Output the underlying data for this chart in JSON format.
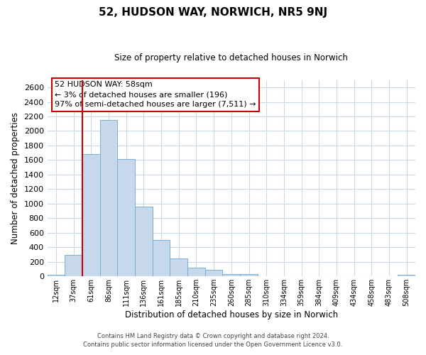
{
  "title": "52, HUDSON WAY, NORWICH, NR5 9NJ",
  "subtitle": "Size of property relative to detached houses in Norwich",
  "xlabel": "Distribution of detached houses by size in Norwich",
  "ylabel": "Number of detached properties",
  "bin_labels": [
    "12sqm",
    "37sqm",
    "61sqm",
    "86sqm",
    "111sqm",
    "136sqm",
    "161sqm",
    "185sqm",
    "210sqm",
    "235sqm",
    "260sqm",
    "285sqm",
    "310sqm",
    "334sqm",
    "359sqm",
    "384sqm",
    "409sqm",
    "434sqm",
    "458sqm",
    "483sqm",
    "508sqm"
  ],
  "bar_values": [
    20,
    300,
    1680,
    2150,
    1610,
    960,
    505,
    245,
    120,
    95,
    30,
    30,
    5,
    5,
    5,
    5,
    5,
    5,
    5,
    5,
    20
  ],
  "bar_color": "#c8d8ec",
  "bar_edge_color": "#7aafd4",
  "property_line_x": 2,
  "property_line_color": "#cc0000",
  "ylim": [
    0,
    2700
  ],
  "yticks": [
    0,
    200,
    400,
    600,
    800,
    1000,
    1200,
    1400,
    1600,
    1800,
    2000,
    2200,
    2400,
    2600
  ],
  "annotation_title": "52 HUDSON WAY: 58sqm",
  "annotation_line1": "← 3% of detached houses are smaller (196)",
  "annotation_line2": "97% of semi-detached houses are larger (7,511) →",
  "annotation_box_color": "#ffffff",
  "annotation_box_edge": "#cc0000",
  "footer_line1": "Contains HM Land Registry data © Crown copyright and database right 2024.",
  "footer_line2": "Contains public sector information licensed under the Open Government Licence v3.0.",
  "background_color": "#ffffff",
  "grid_color": "#ccd9e8"
}
